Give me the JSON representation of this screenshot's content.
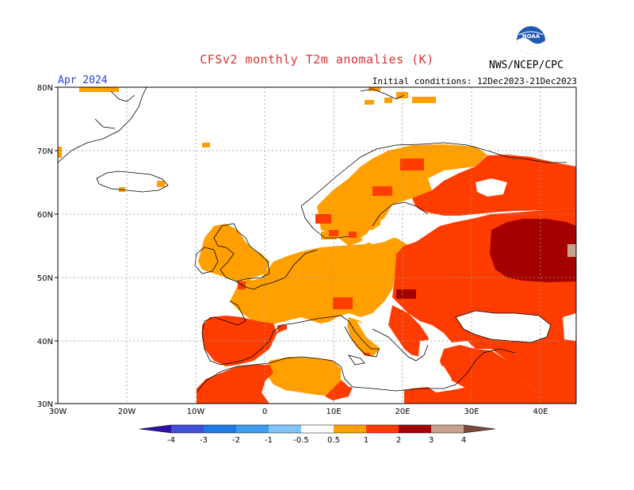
{
  "title": "CFSv2 monthly T2m anomalies (K)",
  "month_label": "Apr 2024",
  "initial_conditions": "Initial conditions: 12Dec2023-21Dec2023",
  "agency": "NWS/NCEP/CPC",
  "logo_text": "NOAA",
  "map": {
    "lat_labels": [
      "80N",
      "70N",
      "60N",
      "50N",
      "40N",
      "30N"
    ],
    "lon_labels": [
      "30W",
      "20W",
      "10W",
      "0",
      "10E",
      "20E",
      "30E",
      "40E"
    ]
  },
  "legend": {
    "labels": [
      "-4",
      "-3",
      "-2",
      "-1",
      "-0.5",
      "0.5",
      "1",
      "2",
      "3",
      "4"
    ],
    "colors": [
      "#2e10a8",
      "#3f4fd8",
      "#1f7ae6",
      "#3b9cf2",
      "#80c4fb",
      "#ffffff",
      "#ffa000",
      "#ff3c00",
      "#a50000",
      "#c8a090",
      "#7a4a3a"
    ]
  },
  "anomaly_colors": {
    "above_0_5": "#ffa000",
    "above_1": "#ff3c00",
    "above_2": "#a50000",
    "above_3": "#c8a090"
  }
}
